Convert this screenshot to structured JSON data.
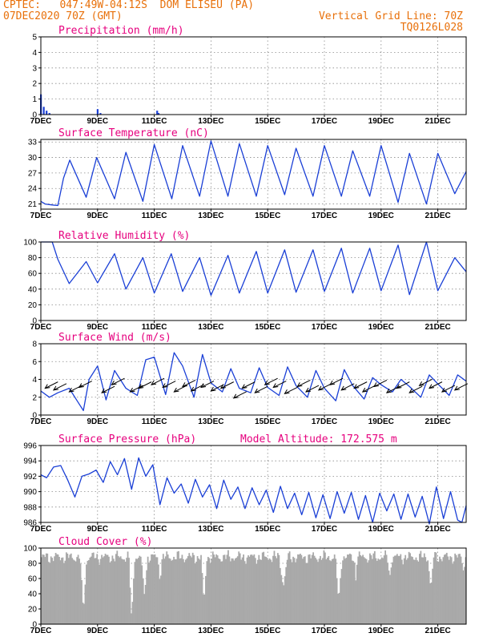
{
  "header": {
    "line1_left": "CPTEC:   047:49W-04:12S  DOM ELISEU (PA)",
    "line2_left": "07DEC2020 70Z (GMT)",
    "line1_right": "Vertical Grid Line: 70Z",
    "line2_right": "TQ0126L028"
  },
  "colors": {
    "header": "#e8700a",
    "panel_title": "#e6007e",
    "series": "#1a3fd6",
    "cloud": "#a9a9a9",
    "wind_arrow": "#000000"
  },
  "x_axis": {
    "day_offsets": [
      0,
      2,
      4,
      6,
      8,
      10,
      12,
      14
    ],
    "tick_labels": [
      "7DEC",
      "9DEC",
      "11DEC",
      "13DEC",
      "15DEC",
      "17DEC",
      "19DEC",
      "21DEC"
    ],
    "span_days": 15
  },
  "chart_data": [
    {
      "id": "precip",
      "type": "bar",
      "title": "Precipitation (mm/h)",
      "ylim": [
        0,
        5
      ],
      "yticks": [
        0,
        1,
        2,
        3,
        4,
        5
      ],
      "x_days": [
        0.0,
        0.1,
        0.2,
        0.3,
        2.0,
        2.1,
        4.1,
        4.15
      ],
      "values": [
        1.3,
        0.5,
        0.25,
        0.1,
        0.35,
        0.1,
        0.25,
        0.1
      ]
    },
    {
      "id": "temp",
      "type": "line",
      "title": "Surface Temperature (nC)",
      "ylim": [
        20,
        33.5
      ],
      "yticks": [
        21,
        24,
        27,
        30,
        33
      ],
      "x_days": [
        0,
        0.15,
        0.4,
        0.6,
        0.8,
        1.02,
        1.6,
        1.97,
        2.6,
        3.0,
        3.6,
        4.0,
        4.62,
        5.0,
        5.6,
        6.0,
        6.6,
        7.0,
        7.6,
        8.0,
        8.6,
        9.0,
        9.6,
        10.0,
        10.6,
        11.0,
        11.6,
        12.0,
        12.6,
        13.0,
        13.6,
        14.0,
        14.6,
        15.0
      ],
      "values": [
        21.5,
        21.0,
        20.8,
        20.7,
        26.0,
        29.5,
        22.3,
        30.0,
        22.0,
        31.0,
        21.5,
        32.5,
        22.0,
        32.3,
        22.5,
        33.2,
        22.5,
        32.7,
        22.5,
        32.3,
        22.8,
        31.8,
        22.5,
        32.3,
        22.5,
        31.3,
        22.5,
        32.3,
        21.3,
        30.8,
        21.0,
        30.8,
        23.0,
        27.3
      ]
    },
    {
      "id": "rh",
      "type": "line",
      "title": "Relative Humidity (%)",
      "ylim": [
        0,
        100
      ],
      "yticks": [
        0,
        20,
        40,
        60,
        80,
        100
      ],
      "x_days": [
        0,
        0.4,
        0.6,
        1.0,
        1.6,
        2.0,
        2.6,
        3.0,
        3.6,
        4.0,
        4.6,
        5.0,
        5.6,
        6.0,
        6.6,
        7.0,
        7.6,
        8.0,
        8.6,
        9.0,
        9.6,
        10.0,
        10.6,
        11.0,
        11.6,
        12.0,
        12.6,
        13.0,
        13.6,
        14.0,
        14.6,
        15.0
      ],
      "values": [
        100,
        100,
        78,
        47,
        75,
        48,
        85,
        40,
        80,
        35,
        85,
        37,
        80,
        32,
        83,
        35,
        88,
        35,
        90,
        36,
        90,
        37,
        92,
        35,
        92,
        38,
        96,
        33,
        100,
        38,
        80,
        62
      ]
    },
    {
      "id": "wind",
      "type": "line",
      "title": "Surface Wind (m/s)",
      "ylim": [
        0,
        8
      ],
      "yticks": [
        0,
        2,
        4,
        6,
        8
      ],
      "x_days": [
        0,
        0.3,
        0.6,
        1.0,
        1.3,
        1.5,
        1.7,
        2.0,
        2.3,
        2.6,
        3.0,
        3.4,
        3.7,
        4.0,
        4.4,
        4.7,
        5.0,
        5.4,
        5.7,
        6.0,
        6.4,
        6.7,
        7.0,
        7.4,
        7.7,
        8.0,
        8.4,
        8.7,
        9.0,
        9.4,
        9.7,
        10.0,
        10.4,
        10.7,
        11.0,
        11.4,
        11.7,
        12.0,
        12.4,
        12.7,
        13.0,
        13.4,
        13.7,
        14.0,
        14.4,
        14.7,
        15.0
      ],
      "values": [
        2.7,
        2.0,
        2.5,
        3.0,
        1.5,
        0.5,
        4.0,
        5.5,
        1.7,
        5.0,
        3.0,
        2.2,
        6.2,
        6.5,
        2.3,
        7.0,
        5.5,
        2.0,
        6.8,
        3.6,
        2.6,
        5.2,
        3.0,
        2.5,
        5.3,
        3.1,
        2.2,
        5.4,
        3.3,
        2.0,
        5.0,
        3.0,
        1.6,
        5.1,
        3.3,
        1.8,
        4.2,
        3.4,
        2.6,
        4.0,
        3.2,
        2.0,
        4.5,
        3.5,
        2.2,
        4.5,
        3.8
      ],
      "arrows_x_days": [
        0.15,
        0.45,
        1.0,
        1.35,
        2.15,
        2.5,
        3.15,
        3.45,
        3.9,
        4.3,
        4.7,
        5.0,
        5.3,
        5.65,
        6.0,
        6.35,
        6.8,
        7.1,
        7.55,
        7.9,
        8.2,
        8.6,
        9.05,
        9.35,
        9.8,
        10.2,
        10.6,
        11.05,
        11.35,
        11.75,
        12.2,
        12.55,
        13.0,
        13.35,
        13.7,
        14.15,
        14.6
      ],
      "arrows_y": [
        3.0,
        2.8,
        2.6,
        3.1,
        2.5,
        3.4,
        2.6,
        3.0,
        3.4,
        3.1,
        2.6,
        3.2,
        2.7,
        3.1,
        2.7,
        3.0,
        1.9,
        3.0,
        2.5,
        3.4,
        3.1,
        2.4,
        3.2,
        2.6,
        2.8,
        3.4,
        2.8,
        3.0,
        2.6,
        3.2,
        2.5,
        3.0,
        2.5,
        3.3,
        3.0,
        2.6,
        2.8
      ]
    },
    {
      "id": "pres",
      "type": "line",
      "title": "Surface Pressure (hPa)",
      "subtitle": "Model Altitude: 172.575 m",
      "ylim": [
        986,
        996
      ],
      "yticks": [
        986,
        988,
        990,
        992,
        994,
        996
      ],
      "x_days": [
        0,
        0.2,
        0.45,
        0.7,
        0.95,
        1.2,
        1.45,
        1.7,
        1.95,
        2.2,
        2.45,
        2.7,
        2.95,
        3.2,
        3.45,
        3.7,
        3.95,
        4.2,
        4.45,
        4.7,
        4.95,
        5.2,
        5.45,
        5.7,
        5.95,
        6.2,
        6.45,
        6.7,
        6.95,
        7.2,
        7.45,
        7.7,
        7.95,
        8.2,
        8.45,
        8.7,
        8.95,
        9.2,
        9.45,
        9.7,
        9.95,
        10.2,
        10.45,
        10.7,
        10.95,
        11.2,
        11.45,
        11.7,
        11.95,
        12.2,
        12.45,
        12.7,
        12.95,
        13.2,
        13.45,
        13.7,
        13.95,
        14.2,
        14.45,
        14.7,
        14.85,
        15.0
      ],
      "values": [
        992.2,
        991.8,
        993.2,
        993.4,
        991.5,
        989.3,
        992.0,
        992.3,
        992.8,
        991.2,
        993.9,
        992.2,
        994.3,
        990.3,
        994.4,
        992.0,
        993.5,
        988.3,
        991.8,
        989.8,
        991.0,
        988.5,
        991.6,
        989.3,
        990.9,
        987.8,
        991.5,
        989.0,
        990.6,
        987.8,
        990.5,
        988.3,
        990.2,
        987.3,
        990.7,
        987.8,
        989.8,
        987.0,
        989.9,
        986.6,
        989.6,
        986.5,
        990.0,
        987.2,
        989.9,
        986.4,
        989.5,
        986.0,
        989.8,
        987.5,
        989.7,
        986.4,
        989.7,
        986.7,
        989.4,
        985.8,
        990.6,
        986.5,
        990.0,
        986.3,
        986.0,
        988.2
      ]
    },
    {
      "id": "cloud",
      "type": "bar",
      "title": "Cloud Cover (%)",
      "ylim": [
        0,
        100
      ],
      "yticks": [
        0,
        20,
        40,
        60,
        80,
        100
      ],
      "base_level": 88,
      "dips": [
        [
          1.5,
          0.12,
          15
        ],
        [
          3.2,
          0.1,
          3
        ],
        [
          3.65,
          0.12,
          38
        ],
        [
          4.2,
          0.08,
          55
        ],
        [
          5.75,
          0.1,
          25
        ],
        [
          8.55,
          0.15,
          48
        ],
        [
          10.5,
          0.12,
          30
        ],
        [
          11.1,
          0.05,
          55
        ],
        [
          12.3,
          0.08,
          60
        ],
        [
          13.75,
          0.1,
          45
        ],
        [
          14.9,
          0.08,
          70
        ]
      ]
    }
  ]
}
